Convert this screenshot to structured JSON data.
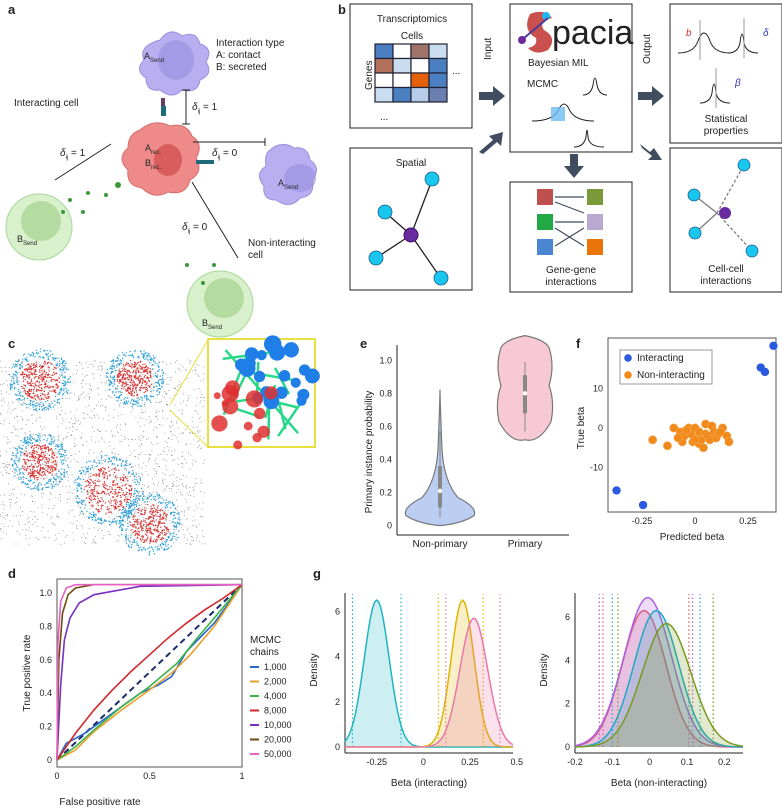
{
  "panels": {
    "a": {
      "label": "a",
      "interaction_type": "Interaction type",
      "contact": "A: contact",
      "secreted": "B: secreted",
      "interacting_cell": "Interacting cell",
      "non_interacting_cell_1": "Non-interacting",
      "non_interacting_cell_2": "cell",
      "delta_1": "δ",
      "delta_sub": "ij",
      "eq1": " = 1",
      "eq0": " = 0",
      "A": "A",
      "B": "B",
      "send": "Send",
      "rec": "rec."
    },
    "b": {
      "label": "b",
      "transcriptomics": "Transcriptomics",
      "cells": "Cells",
      "genes": "Genes",
      "ellipsis": "...",
      "spatial": "Spatial",
      "input": "Input",
      "output": "Output",
      "logo": "pacia",
      "bayesian": "Bayesian MIL",
      "mcmc": "MCMC",
      "gene_gene_1": "Gene-gene",
      "gene_gene_2": "interactions",
      "stat_1": "Statistical",
      "stat_2": "properties",
      "cell_cell_1": "Cell-cell",
      "cell_cell_2": "interactions",
      "sym_b": "b",
      "sym_delta": "δ",
      "sym_beta": "β",
      "matrix_colors": [
        "#4a7fc1",
        "#ffffff",
        "#a0746a",
        "#c9dcf0",
        "#b0705a",
        "#c9dcf0",
        "#ffffff",
        "#4a7fc1",
        "#ffffff",
        "#ffffff",
        "#e5600a",
        "#4a7fc1",
        "#c9dcf0",
        "#4a7fc1",
        "#b5cdea",
        "#6a7fb0"
      ],
      "gene_colors_left": [
        "#c0504d",
        "#22a845",
        "#4a86d0"
      ],
      "gene_colors_right": [
        "#7a9a3a",
        "#b9a8d0",
        "#e8740a"
      ]
    },
    "c": {
      "label": "c"
    },
    "e": {
      "label": "e"
    },
    "f": {
      "label": "f"
    },
    "d": {
      "label": "d"
    },
    "g": {
      "label": "g"
    }
  },
  "chart_data": [
    {
      "panel": "d",
      "type": "line",
      "xlabel": "False positive rate",
      "ylabel": "True positive rate",
      "xlim": [
        0,
        1
      ],
      "ylim": [
        0,
        1.05
      ],
      "xticks": [
        "0",
        "0.5",
        "1"
      ],
      "yticks": [
        "0",
        "0.2",
        "0.4",
        "0.6",
        "0.8",
        "1.0"
      ],
      "legend_title_1": "MCMC",
      "legend_title_2": "chains",
      "legend_placement": "right",
      "reference_line": "dashed diagonal",
      "series": [
        {
          "name": "1,000",
          "color": "#2a66c8",
          "points": [
            [
              0,
              0
            ],
            [
              0.05,
              0.1
            ],
            [
              0.15,
              0.16
            ],
            [
              0.3,
              0.28
            ],
            [
              0.45,
              0.4
            ],
            [
              0.55,
              0.45
            ],
            [
              0.62,
              0.5
            ],
            [
              0.7,
              0.65
            ],
            [
              0.85,
              0.82
            ],
            [
              1,
              1.05
            ]
          ]
        },
        {
          "name": "2,000",
          "color": "#e8a030",
          "points": [
            [
              0,
              0
            ],
            [
              0.1,
              0.06
            ],
            [
              0.2,
              0.17
            ],
            [
              0.35,
              0.3
            ],
            [
              0.5,
              0.42
            ],
            [
              0.62,
              0.52
            ],
            [
              0.72,
              0.63
            ],
            [
              0.85,
              0.8
            ],
            [
              1,
              1.05
            ]
          ]
        },
        {
          "name": "4,000",
          "color": "#3cb44b",
          "points": [
            [
              0,
              0
            ],
            [
              0.1,
              0.08
            ],
            [
              0.2,
              0.18
            ],
            [
              0.35,
              0.32
            ],
            [
              0.5,
              0.44
            ],
            [
              0.65,
              0.58
            ],
            [
              0.75,
              0.72
            ],
            [
              0.85,
              0.85
            ],
            [
              1,
              1.05
            ]
          ]
        },
        {
          "name": "8,000",
          "color": "#d0282c",
          "points": [
            [
              0,
              0
            ],
            [
              0.1,
              0.16
            ],
            [
              0.2,
              0.3
            ],
            [
              0.3,
              0.42
            ],
            [
              0.4,
              0.53
            ],
            [
              0.5,
              0.63
            ],
            [
              0.6,
              0.73
            ],
            [
              0.7,
              0.82
            ],
            [
              0.8,
              0.9
            ],
            [
              0.9,
              0.97
            ],
            [
              1,
              1.05
            ]
          ]
        },
        {
          "name": "10,000",
          "color": "#7a30c0",
          "points": [
            [
              0,
              0
            ],
            [
              0.02,
              0.45
            ],
            [
              0.04,
              0.72
            ],
            [
              0.07,
              0.85
            ],
            [
              0.12,
              0.94
            ],
            [
              0.2,
              0.99
            ],
            [
              0.3,
              1.01
            ],
            [
              0.45,
              1.04
            ],
            [
              1,
              1.05
            ]
          ]
        },
        {
          "name": "20,000",
          "color": "#6e4a0e",
          "points": [
            [
              0,
              0
            ],
            [
              0.01,
              0.6
            ],
            [
              0.03,
              0.88
            ],
            [
              0.06,
              0.99
            ],
            [
              0.1,
              1.03
            ],
            [
              0.2,
              1.05
            ],
            [
              1,
              1.05
            ]
          ]
        },
        {
          "name": "50,000",
          "color": "#e860c0",
          "points": [
            [
              0,
              0
            ],
            [
              0.005,
              0.7
            ],
            [
              0.02,
              0.95
            ],
            [
              0.05,
              1.03
            ],
            [
              0.1,
              1.05
            ],
            [
              1,
              1.05
            ]
          ]
        }
      ]
    },
    {
      "panel": "e",
      "type": "violin",
      "ylabel": "Primary instance probability",
      "ylim": [
        0,
        1.05
      ],
      "yticks": [
        "0",
        "0.2",
        "0.4",
        "0.6",
        "0.8",
        "1.0"
      ],
      "categories": [
        "Non-primary",
        "Primary"
      ],
      "colors": [
        "#bccdf2",
        "#f6c9d4"
      ],
      "stats": [
        {
          "min": 0.0,
          "q1": 0.11,
          "median": 0.21,
          "q3": 0.36,
          "max": 0.62,
          "whisker": [
            0.05,
            0.57
          ]
        },
        {
          "min": 0.52,
          "q1": 0.68,
          "median": 0.8,
          "q3": 0.91,
          "max": 1.04,
          "whisker": [
            0.57,
            0.99
          ]
        }
      ]
    },
    {
      "panel": "f",
      "type": "scatter",
      "xlabel": "Predicted beta",
      "ylabel": "True beta",
      "xlim": [
        -0.4,
        0.4
      ],
      "ylim": [
        -22,
        23
      ],
      "xticks": [
        "-0.25",
        "0",
        "0.25"
      ],
      "yticks": [
        "10",
        "0",
        "-10"
      ],
      "legend_placement": "top-left",
      "series": [
        {
          "name": "Interacting",
          "color": "#2a5ae0",
          "points": [
            [
              -0.37,
              -15.8
            ],
            [
              -0.245,
              -19.5
            ],
            [
              0.31,
              15.3
            ],
            [
              0.33,
              14.2
            ],
            [
              0.37,
              20.8
            ]
          ]
        },
        {
          "name": "Non-interacting",
          "color": "#f08a1a",
          "points": [
            [
              -0.2,
              -3
            ],
            [
              -0.13,
              -4.5
            ],
            [
              -0.1,
              0
            ],
            [
              -0.07,
              -1
            ],
            [
              -0.06,
              -3.5
            ],
            [
              -0.05,
              -2
            ],
            [
              -0.03,
              0
            ],
            [
              -0.02,
              -1.5
            ],
            [
              -0.01,
              -3.5
            ],
            [
              0,
              0
            ],
            [
              0.01,
              -2.5
            ],
            [
              0.02,
              -1
            ],
            [
              0.02,
              -4
            ],
            [
              0.03,
              -3
            ],
            [
              0.04,
              -5
            ],
            [
              0.05,
              -1.5
            ],
            [
              0.05,
              1
            ],
            [
              0.06,
              -2
            ],
            [
              0.07,
              -3
            ],
            [
              0.08,
              0.5
            ],
            [
              0.09,
              -1
            ],
            [
              0.1,
              -2.5
            ],
            [
              0.11,
              -1.5
            ],
            [
              0.13,
              0
            ],
            [
              0.15,
              -2
            ],
            [
              0.16,
              -3.5
            ],
            [
              -0.08,
              -2.5
            ],
            [
              -0.04,
              -0.5
            ],
            [
              0.0,
              -3
            ],
            [
              0.12,
              -1
            ]
          ]
        }
      ]
    },
    {
      "panel": "g-left",
      "type": "area",
      "xlabel": "Beta (interacting)",
      "ylabel": "Density",
      "xlim": [
        -0.42,
        0.48
      ],
      "ylim": [
        0,
        6.9
      ],
      "xticks": [
        "-0.25",
        "0",
        "0.25",
        "0.5"
      ],
      "yticks": [
        "0",
        "2",
        "4",
        "6"
      ],
      "series": [
        {
          "color": "#1fb5c0",
          "peak_x": -0.25,
          "peak_density": 6.5,
          "interval": [
            -0.38,
            -0.12
          ]
        },
        {
          "color": "#e0b400",
          "peak_x": 0.21,
          "peak_density": 6.5,
          "interval": [
            0.08,
            0.32
          ]
        },
        {
          "color": "#e878a8",
          "peak_x": 0.27,
          "peak_density": 5.7,
          "interval": [
            0.12,
            0.41
          ]
        }
      ]
    },
    {
      "panel": "g-right",
      "type": "area",
      "xlabel": "Beta (non-interacting)",
      "ylabel": "Density",
      "xlim": [
        -0.2,
        0.25
      ],
      "ylim": [
        0,
        7.2
      ],
      "xticks": [
        "-0.2",
        "-0.1",
        "0",
        "0.1",
        "0.2"
      ],
      "yticks": [
        "0",
        "2",
        "4",
        "6"
      ],
      "series": [
        {
          "color": "#e06070",
          "peak_x": -0.015,
          "peak_density": 6.3,
          "interval": [
            -0.125,
            0.105
          ]
        },
        {
          "color": "#b060e0",
          "peak_x": -0.005,
          "peak_density": 6.9,
          "interval": [
            -0.135,
            0.115
          ]
        },
        {
          "color": "#1fa8c8",
          "peak_x": 0.018,
          "peak_density": 6.3,
          "interval": [
            -0.1,
            0.135
          ]
        },
        {
          "color": "#7a9a20",
          "peak_x": 0.045,
          "peak_density": 5.7,
          "interval": [
            -0.085,
            0.17
          ]
        }
      ]
    }
  ]
}
